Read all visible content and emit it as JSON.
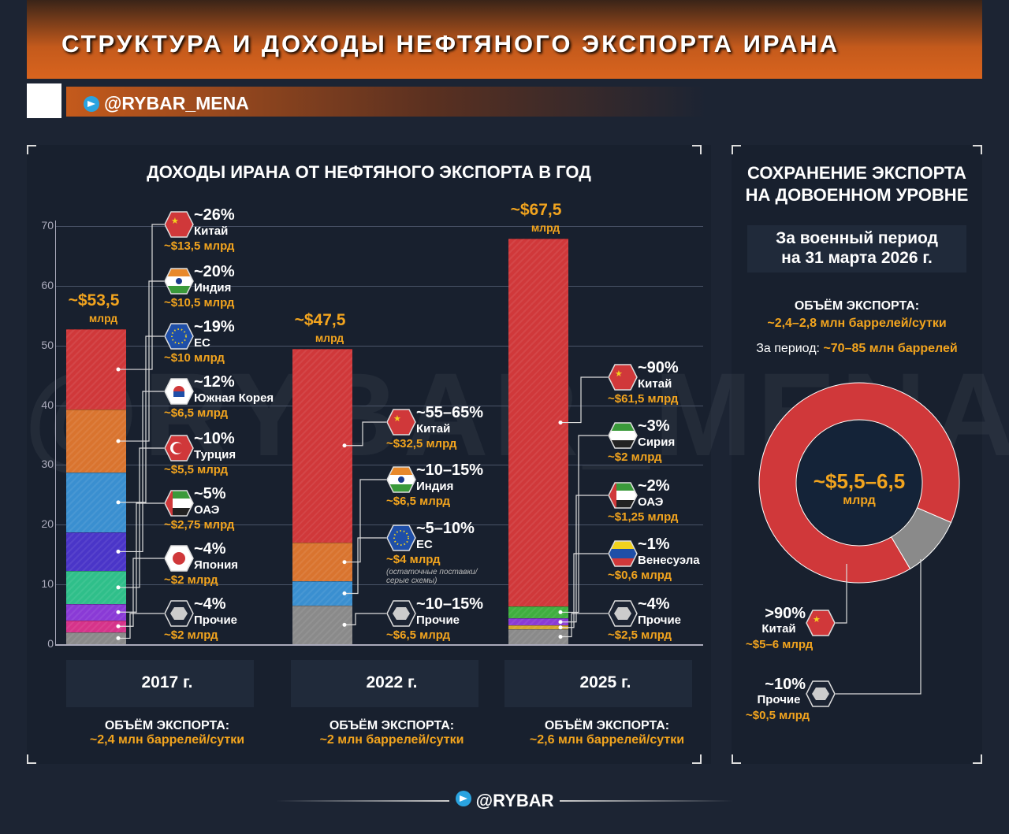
{
  "header": {
    "title": "СТРУКТУРА И ДОХОДЫ НЕФТЯНОГО ЭКСПОРТА ИРАНА",
    "handle": "@RYBAR_MENA",
    "watermark": "@RYBAR_MENA",
    "footer": "@RYBAR"
  },
  "colors": {
    "accent": "#f2a41e",
    "header": "#d9641e",
    "bg": "#1c2433"
  },
  "chart_data": {
    "type": "bar",
    "stacked": true,
    "title": "ДОХОДЫ ИРАНА ОТ НЕФТЯНОГО ЭКСПОРТА В ГОД",
    "ylim": [
      0,
      70
    ],
    "yticks": [
      "0",
      "10",
      "20",
      "30",
      "40",
      "50",
      "60",
      "70"
    ],
    "grid": true,
    "unit_label": "млрд",
    "categories": [
      {
        "year": "2017 г.",
        "total": "~$53,5",
        "volume_label": "ОБЪЁМ ЭКСПОРТА:",
        "volume": "~2,4 млн баррелей/сутки",
        "segments": [
          {
            "name": "Китай",
            "pct": "~26%",
            "amount": "~$13,5 млрд",
            "value": 13.5,
            "color": "#d0383a",
            "flag": "cn"
          },
          {
            "name": "Индия",
            "pct": "~20%",
            "amount": "~$10,5 млрд",
            "value": 10.5,
            "color": "#d9742f",
            "flag": "in"
          },
          {
            "name": "ЕС",
            "pct": "~19%",
            "amount": "~$10 млрд",
            "value": 10,
            "color": "#3a8fd0",
            "flag": "eu"
          },
          {
            "name": "Южная Корея",
            "pct": "~12%",
            "amount": "~$6,5 млрд",
            "value": 6.5,
            "color": "#4a35c8",
            "flag": "kr"
          },
          {
            "name": "Турция",
            "pct": "~10%",
            "amount": "~$5,5 млрд",
            "value": 5.5,
            "color": "#2fbf8a",
            "flag": "tr"
          },
          {
            "name": "ОАЭ",
            "pct": "~5%",
            "amount": "~$2,75 млрд",
            "value": 2.75,
            "color": "#8a3ad6",
            "flag": "ae"
          },
          {
            "name": "Япония",
            "pct": "~4%",
            "amount": "~$2 млрд",
            "value": 2,
            "color": "#d6338a",
            "flag": "jp"
          },
          {
            "name": "Прочие",
            "pct": "~4%",
            "amount": "~$2 млрд",
            "value": 2,
            "color": "#8a8a8a",
            "flag": "other"
          }
        ]
      },
      {
        "year": "2022 г.",
        "total": "~$47,5",
        "volume_label": "ОБЪЁМ ЭКСПОРТА:",
        "volume": "~2 млн баррелей/сутки",
        "segments": [
          {
            "name": "Китай",
            "pct": "~55–65%",
            "amount": "~$32,5 млрд",
            "value": 32.5,
            "color": "#d0383a",
            "flag": "cn"
          },
          {
            "name": "Индия",
            "pct": "~10–15%",
            "amount": "~$6,5 млрд",
            "value": 6.5,
            "color": "#d9742f",
            "flag": "in"
          },
          {
            "name": "ЕС",
            "pct": "~5–10%",
            "amount": "~$4 млрд",
            "value": 4,
            "color": "#3a8fd0",
            "flag": "eu",
            "note": "(остаточные поставки/ серые схемы)"
          },
          {
            "name": "Прочие",
            "pct": "~10–15%",
            "amount": "~$6,5 млрд",
            "value": 6.5,
            "color": "#8a8a8a",
            "flag": "other"
          }
        ]
      },
      {
        "year": "2025 г.",
        "total": "~$67,5",
        "volume_label": "ОБЪЁМ ЭКСПОРТА:",
        "volume": "~2,6 млн баррелей/сутки",
        "segments": [
          {
            "name": "Китай",
            "pct": "~90%",
            "amount": "~$61,5 млрд",
            "value": 61.5,
            "color": "#d0383a",
            "flag": "cn"
          },
          {
            "name": "Сирия",
            "pct": "~3%",
            "amount": "~$2 млрд",
            "value": 2,
            "color": "#3fae3f",
            "flag": "sy"
          },
          {
            "name": "ОАЭ",
            "pct": "~2%",
            "amount": "~$1,25 млрд",
            "value": 1.25,
            "color": "#8a3ad6",
            "flag": "ae"
          },
          {
            "name": "Венесуэла",
            "pct": "~1%",
            "amount": "~$0,6 млрд",
            "value": 0.6,
            "color": "#d4a82a",
            "flag": "ve"
          },
          {
            "name": "Прочие",
            "pct": "~4%",
            "amount": "~$2,5 млрд",
            "value": 2.5,
            "color": "#8a8a8a",
            "flag": "other"
          }
        ]
      }
    ]
  },
  "right_panel": {
    "title_line1": "СОХРАНЕНИЕ ЭКСПОРТА",
    "title_line2": "НА ДОВОЕННОМ УРОВНЕ",
    "period_line1": "За военный период",
    "period_line2": "на 31 марта 2026 г.",
    "volume_label": "ОБЪЁМ ЭКСПОРТА:",
    "volume": "~2,4–2,8 млн баррелей/сутки",
    "period_prefix": "За период:",
    "period_total": "~70–85 млн баррелей",
    "donut": {
      "type": "pie",
      "center_value": "~$5,5–6,5",
      "center_unit": "млрд",
      "slices": [
        {
          "name": "Китай",
          "pct": ">90%",
          "amount": "~$5–6 млрд",
          "value": 90,
          "color": "#d0383a",
          "flag": "cn"
        },
        {
          "name": "Прочие",
          "pct": "~10%",
          "amount": "~$0,5 млрд",
          "value": 10,
          "color": "#8a8a8a",
          "flag": "other"
        }
      ]
    }
  }
}
